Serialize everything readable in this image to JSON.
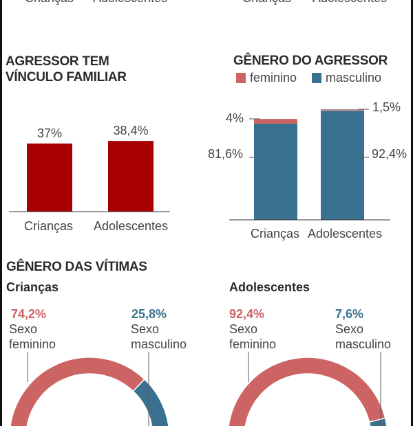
{
  "top_cut_labels": {
    "left": [
      "Crianças",
      "Adolescentes"
    ],
    "right": [
      "Crianças",
      "Adolescentes"
    ]
  },
  "colors": {
    "dark_red": "#a80000",
    "feminino": "#cc6464",
    "masculino": "#3b7190"
  },
  "chart_data": [
    {
      "type": "bar",
      "title": "AGRESSOR TEM VÍNCULO FAMILIAR",
      "title_lines": [
        "AGRESSOR TEM",
        "VÍNCULO FAMILIAR"
      ],
      "categories": [
        "Crianças",
        "Adolescentes"
      ],
      "values": [
        37,
        38.4
      ],
      "value_labels": [
        "37%",
        "38,4%"
      ],
      "unit": "%"
    },
    {
      "type": "bar",
      "stacked": true,
      "title": "GÊNERO DO AGRESSOR",
      "legend": [
        "feminino",
        "masculino"
      ],
      "legend_placement": "top-left",
      "categories": [
        "Crianças",
        "Adolescentes"
      ],
      "series": [
        {
          "name": "masculino",
          "values": [
            81.6,
            92.4
          ],
          "labels": [
            "81,6%",
            "92,4%"
          ]
        },
        {
          "name": "feminino",
          "values": [
            4,
            1.5
          ],
          "labels": [
            "4%",
            "1,5%"
          ]
        }
      ],
      "unit": "%"
    },
    {
      "type": "pie",
      "variant": "half-donut",
      "section_title": "GÊNERO DAS VÍTIMAS",
      "title": "Crianças",
      "slices": [
        {
          "pct_label": "74,2%",
          "value": 74.2,
          "line1": "Sexo",
          "line2": "feminino"
        },
        {
          "pct_label": "25,8%",
          "value": 25.8,
          "line1": "Sexo",
          "line2": "masculino"
        }
      ]
    },
    {
      "type": "pie",
      "variant": "half-donut",
      "title": "Adolescentes",
      "slices": [
        {
          "pct_label": "92,4%",
          "value": 92.4,
          "line1": "Sexo",
          "line2": "feminino"
        },
        {
          "pct_label": "7,6%",
          "value": 7.6,
          "line1": "Sexo",
          "line2": "masculino"
        }
      ]
    }
  ]
}
